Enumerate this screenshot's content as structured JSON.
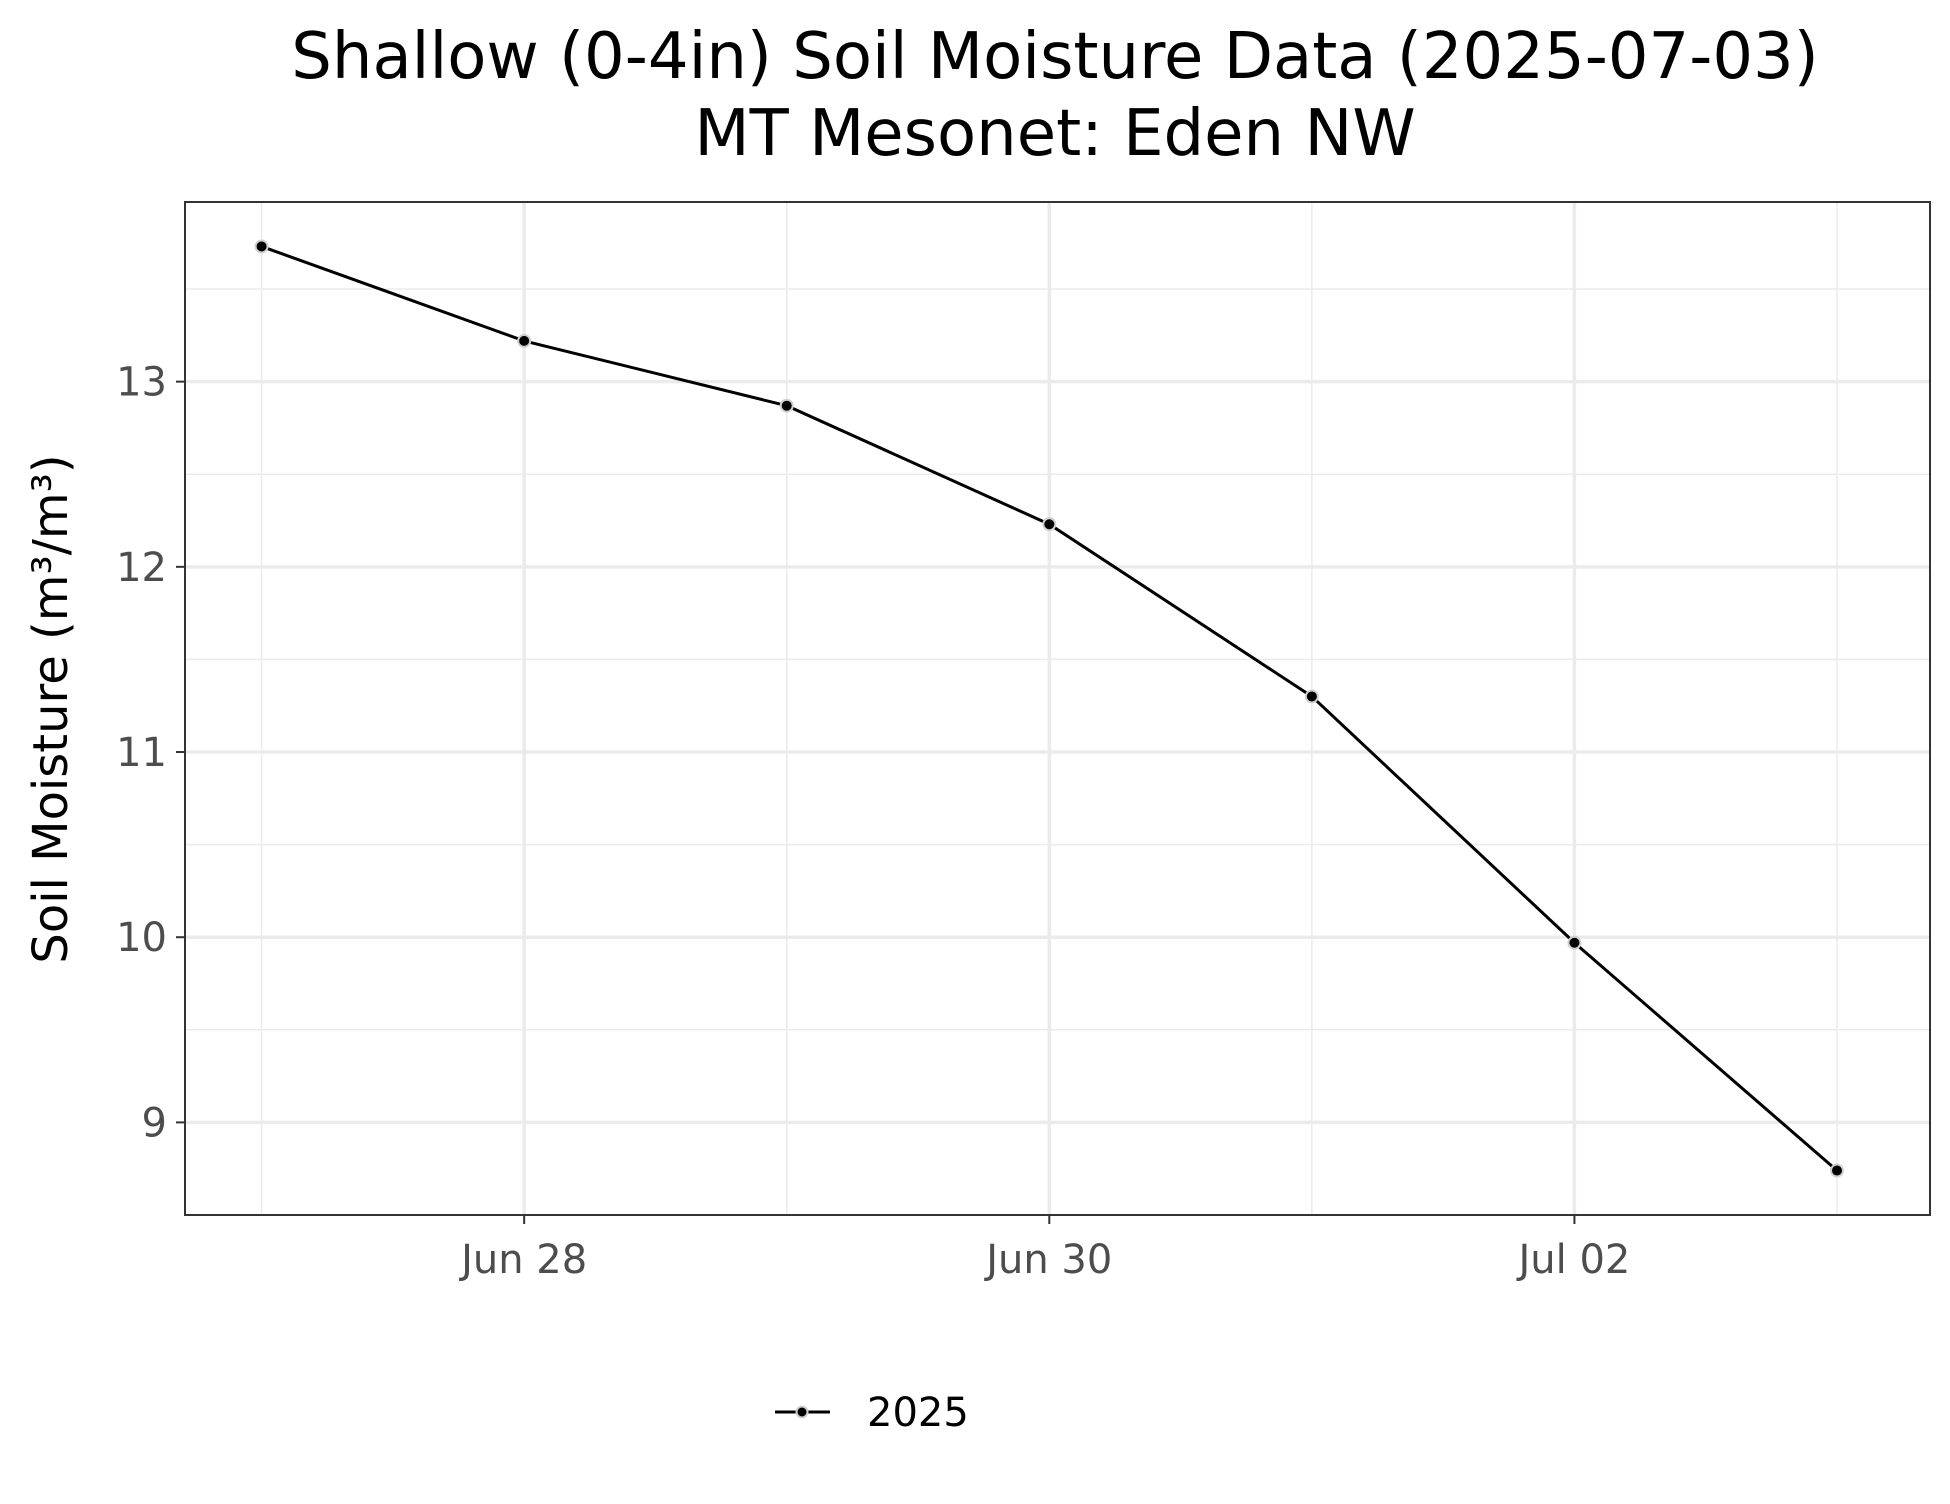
{
  "chart_data": {
    "type": "line",
    "title_line1": "Shallow (0-4in) Soil Moisture Data (2025-07-03)",
    "title_line2": "MT Mesonet: Eden NW",
    "ylabel": "Soil Moisture (m³/m³)",
    "xlabel": "",
    "x_ticks": [
      "Jun 28",
      "Jun 30",
      "Jul 02"
    ],
    "x_tick_dates": [
      "2025-06-28",
      "2025-06-30",
      "2025-07-02"
    ],
    "y_ticks": [
      9,
      10,
      11,
      12,
      13
    ],
    "ylim": [
      8.5,
      13.97
    ],
    "xlim": [
      "2025-06-26T17:00",
      "2025-07-03T08:30"
    ],
    "grid": true,
    "legend_position": "bottom",
    "series": [
      {
        "name": "2025",
        "color": "#000000",
        "x": [
          "2025-06-27",
          "2025-06-28",
          "2025-06-29",
          "2025-06-30",
          "2025-07-01",
          "2025-07-02",
          "2025-07-03"
        ],
        "values": [
          13.73,
          13.22,
          12.87,
          12.23,
          11.3,
          9.97,
          8.74
        ]
      }
    ]
  }
}
